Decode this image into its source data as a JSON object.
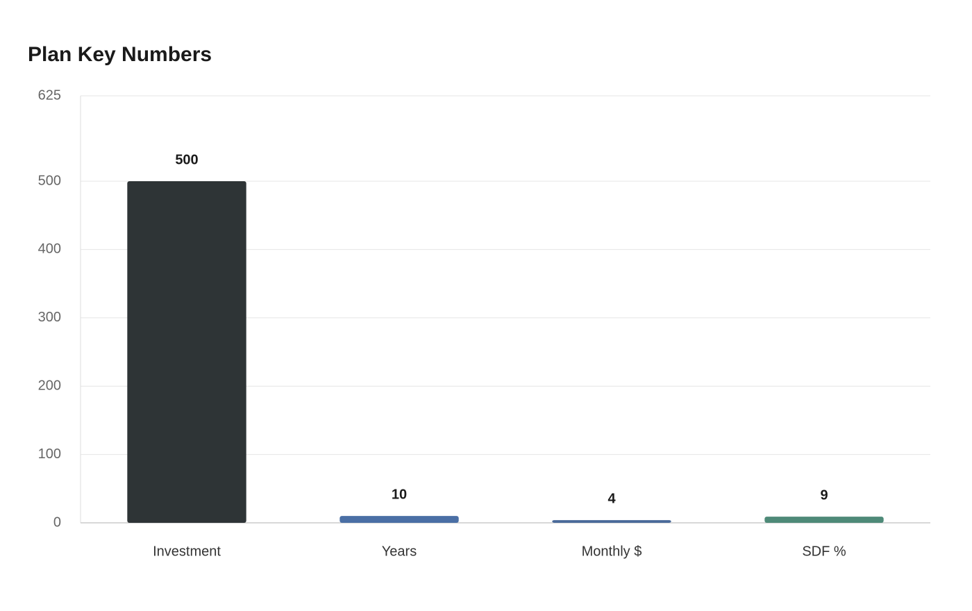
{
  "chart_data": {
    "type": "bar",
    "title": "Plan Key Numbers",
    "categories": [
      "Investment",
      "Years",
      "Monthly $",
      "SDF %"
    ],
    "values": [
      500,
      10,
      4,
      9
    ],
    "colors": [
      "#2e3436",
      "#4a6fa5",
      "#4a6a9a",
      "#4e8a78"
    ],
    "ylim": [
      0,
      625
    ],
    "yticks": [
      0,
      100,
      200,
      300,
      400,
      500,
      625
    ],
    "grid": true
  }
}
